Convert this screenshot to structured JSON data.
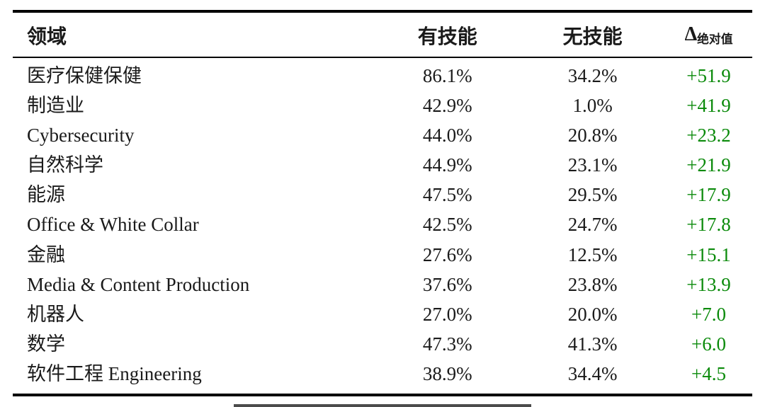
{
  "colors": {
    "text": "#1a1a1a",
    "delta_green": "#0a8a0a",
    "rule": "#000000",
    "background": "#ffffff"
  },
  "table": {
    "headers": {
      "domain": "领域",
      "with_skill": "有技能",
      "without_skill": "无技能",
      "delta_symbol": "Δ",
      "delta_subscript": "绝对值"
    },
    "rows": [
      {
        "domain": "医疗保健保健",
        "with_skill": "86.1%",
        "without_skill": "34.2%",
        "delta": "+51.9"
      },
      {
        "domain": "制造业",
        "with_skill": "42.9%",
        "without_skill": "1.0%",
        "delta": "+41.9"
      },
      {
        "domain": "Cybersecurity",
        "with_skill": "44.0%",
        "without_skill": "20.8%",
        "delta": "+23.2"
      },
      {
        "domain": "自然科学",
        "with_skill": "44.9%",
        "without_skill": "23.1%",
        "delta": "+21.9"
      },
      {
        "domain": "能源",
        "with_skill": "47.5%",
        "without_skill": "29.5%",
        "delta": "+17.9"
      },
      {
        "domain": "Office & White Collar",
        "with_skill": "42.5%",
        "without_skill": "24.7%",
        "delta": "+17.8"
      },
      {
        "domain": "金融",
        "with_skill": "27.6%",
        "without_skill": "12.5%",
        "delta": "+15.1"
      },
      {
        "domain": "Media & Content Production",
        "with_skill": "37.6%",
        "without_skill": "23.8%",
        "delta": "+13.9"
      },
      {
        "domain": "机器人",
        "with_skill": "27.0%",
        "without_skill": "20.0%",
        "delta": "+7.0"
      },
      {
        "domain": "数学",
        "with_skill": "47.3%",
        "without_skill": "41.3%",
        "delta": "+6.0"
      },
      {
        "domain": "软件工程 Engineering",
        "with_skill": "38.9%",
        "without_skill": "34.4%",
        "delta": "+4.5"
      }
    ]
  },
  "chart_data": {
    "type": "table",
    "title": "",
    "categories": [
      "医疗保健保健",
      "制造业",
      "Cybersecurity",
      "自然科学",
      "能源",
      "Office & White Collar",
      "金融",
      "Media & Content Production",
      "机器人",
      "数学",
      "软件工程 Engineering"
    ],
    "series": [
      {
        "name": "有技能",
        "values": [
          86.1,
          42.9,
          44.0,
          44.9,
          47.5,
          42.5,
          27.6,
          37.6,
          27.0,
          47.3,
          38.9
        ]
      },
      {
        "name": "无技能",
        "values": [
          34.2,
          1.0,
          20.8,
          23.1,
          29.5,
          24.7,
          12.5,
          23.8,
          20.0,
          41.3,
          34.4
        ]
      },
      {
        "name": "Δ绝对值",
        "values": [
          51.9,
          41.9,
          23.2,
          21.9,
          17.9,
          17.8,
          15.1,
          13.9,
          7.0,
          6.0,
          4.5
        ]
      }
    ]
  }
}
